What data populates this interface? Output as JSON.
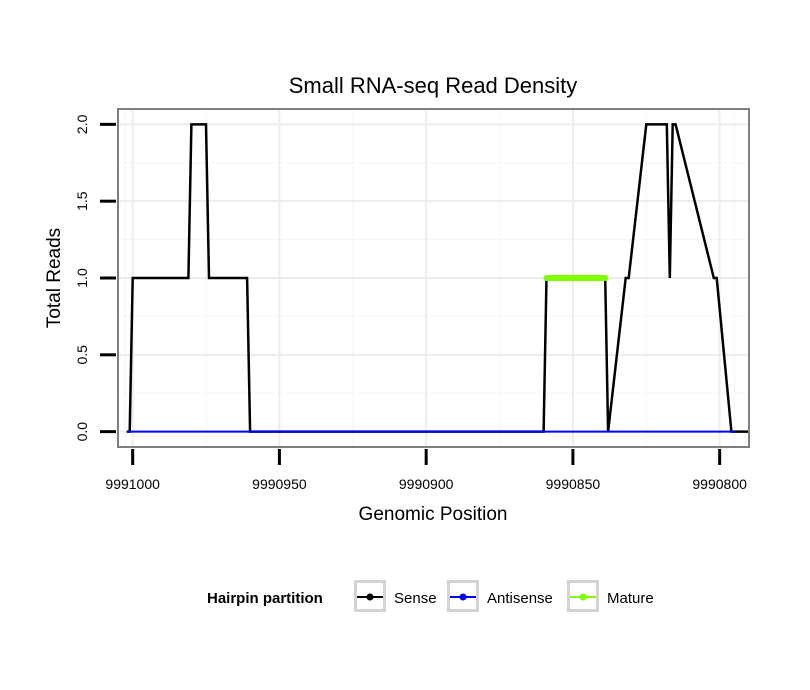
{
  "chart_data": {
    "type": "line",
    "title": "Small RNA-seq Read Density",
    "xlabel": "Genomic Position",
    "ylabel": "Total Reads",
    "xlim": [
      9991005,
      9990790
    ],
    "ylim": [
      -0.1,
      2.1
    ],
    "x_reversed": true,
    "grid": true,
    "x_ticks": [
      9991000,
      9990950,
      9990900,
      9990850,
      9990800
    ],
    "x_tick_labels": [
      "9991000",
      "9990950",
      "9990900",
      "9990850",
      "9990800"
    ],
    "y_ticks": [
      0.0,
      0.5,
      1.0,
      1.5,
      2.0
    ],
    "y_tick_labels": [
      "0.0",
      "0.5",
      "1.0",
      "1.5",
      "2.0"
    ],
    "legend_title": "Hairpin partition",
    "legend_position": "bottom",
    "series": [
      {
        "name": "Sense",
        "color": "#000000",
        "x": [
          9991002,
          9991001,
          9991000,
          9990981,
          9990980,
          9990975,
          9990974,
          9990961,
          9990960,
          9990860,
          9990859,
          9990839,
          9990838,
          9990832,
          9990831,
          9990825,
          9990818,
          9990817,
          9990816,
          9990815,
          9990802,
          9990801,
          9990796,
          9990795,
          9990790
        ],
        "values": [
          0,
          0,
          1,
          1,
          2,
          2,
          1,
          1,
          0,
          0,
          1,
          1,
          0,
          1,
          1,
          2,
          2,
          1,
          2,
          2,
          1,
          1,
          0,
          0,
          0
        ]
      },
      {
        "name": "Antisense",
        "color": "#0000ff",
        "x": [
          9991002,
          9990795
        ],
        "values": [
          0,
          0
        ]
      },
      {
        "name": "Mature",
        "color": "#7fff00",
        "x": [
          9990859,
          9990839
        ],
        "values": [
          1,
          1
        ]
      }
    ]
  }
}
